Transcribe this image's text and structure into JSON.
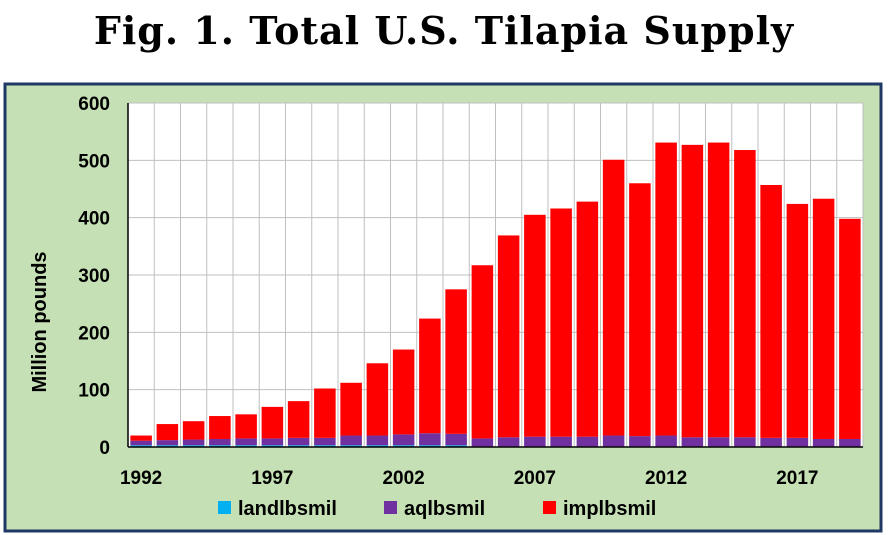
{
  "title": "Fig. 1. Total U.S. Tilapia Supply",
  "colors": {
    "frame_bg": "#c5e0b4",
    "frame_border": "#1f3864",
    "plot_bg": "#ffffff",
    "grid": "#bfbfbf",
    "land": "#00b0f0",
    "aq": "#7030a0",
    "imp": "#ff0000"
  },
  "chart_data": {
    "type": "bar",
    "stacked": true,
    "ylabel": "Million pounds",
    "xlabel": "",
    "ylim": [
      0,
      600
    ],
    "yticks": [
      0,
      100,
      200,
      300,
      400,
      500,
      600
    ],
    "xtick_labels": [
      "1992",
      "1997",
      "2002",
      "2007",
      "2012",
      "2017"
    ],
    "grid": true,
    "legend_position": "bottom",
    "categories": [
      1992,
      1993,
      1994,
      1995,
      1996,
      1997,
      1998,
      1999,
      2000,
      2001,
      2002,
      2003,
      2004,
      2005,
      2006,
      2007,
      2008,
      2009,
      2010,
      2011,
      2012,
      2013,
      2014,
      2015,
      2016,
      2017,
      2018,
      2019
    ],
    "series": [
      {
        "name": "landlbsmil",
        "values": [
          3,
          3,
          3,
          3,
          3,
          3,
          3,
          3,
          3,
          3,
          3,
          3,
          3,
          1,
          1,
          1,
          1,
          1,
          1,
          1,
          1,
          1,
          1,
          1,
          1,
          1,
          1,
          1
        ]
      },
      {
        "name": "aqlbsmil",
        "values": [
          8,
          9,
          10,
          11,
          12,
          12,
          13,
          13,
          17,
          17,
          19,
          21,
          20,
          14,
          16,
          17,
          17,
          17,
          19,
          18,
          19,
          16,
          16,
          16,
          15,
          15,
          13,
          13
        ]
      },
      {
        "name": "implbsmil",
        "values": [
          9,
          28,
          32,
          40,
          42,
          55,
          64,
          86,
          92,
          126,
          148,
          200,
          252,
          302,
          352,
          387,
          398,
          410,
          481,
          441,
          511,
          510,
          514,
          501,
          441,
          408,
          419,
          384
        ]
      }
    ]
  }
}
